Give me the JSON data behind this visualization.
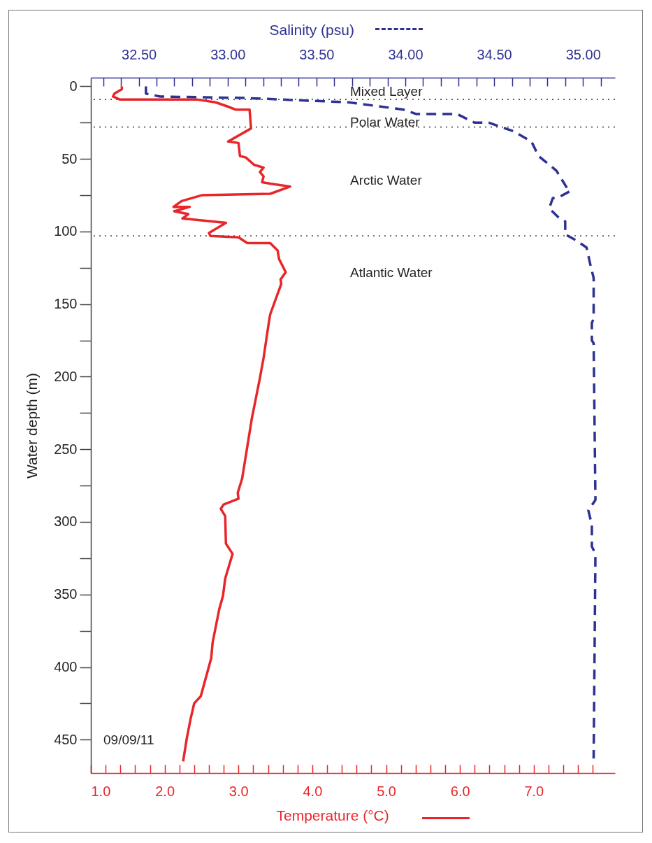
{
  "chart_data": {
    "type": "line",
    "xlabel": "Temperature (°C)",
    "x2label": "Salinity (psu)",
    "ylabel": "Water depth (m)",
    "xlim": [
      1.0,
      8.1
    ],
    "xticks": [
      {
        "value": 1,
        "label": "1.0"
      },
      {
        "value": 1.2,
        "label": null
      },
      {
        "value": 1.4,
        "label": null
      },
      {
        "value": 1.6,
        "label": null
      },
      {
        "value": 1.8,
        "label": null
      },
      {
        "value": 2,
        "label": "2.0"
      },
      {
        "value": 2.2,
        "label": null
      },
      {
        "value": 2.4,
        "label": null
      },
      {
        "value": 2.6,
        "label": null
      },
      {
        "value": 2.8,
        "label": null
      },
      {
        "value": 3,
        "label": "3.0"
      },
      {
        "value": 3.2,
        "label": null
      },
      {
        "value": 3.4,
        "label": null
      },
      {
        "value": 3.6,
        "label": null
      },
      {
        "value": 3.8,
        "label": null
      },
      {
        "value": 4,
        "label": "4.0"
      },
      {
        "value": 4.2,
        "label": null
      },
      {
        "value": 4.4,
        "label": null
      },
      {
        "value": 4.6,
        "label": null
      },
      {
        "value": 4.8,
        "label": null
      },
      {
        "value": 5,
        "label": "5.0"
      },
      {
        "value": 5.2,
        "label": null
      },
      {
        "value": 5.4,
        "label": null
      },
      {
        "value": 5.6,
        "label": null
      },
      {
        "value": 5.8,
        "label": null
      },
      {
        "value": 6,
        "label": "6.0"
      },
      {
        "value": 6.2,
        "label": null
      },
      {
        "value": 6.4,
        "label": null
      },
      {
        "value": 6.6,
        "label": null
      },
      {
        "value": 6.8,
        "label": null
      },
      {
        "value": 7,
        "label": "7.0"
      },
      {
        "value": 7.2,
        "label": null
      },
      {
        "value": 7.4,
        "label": null
      },
      {
        "value": 7.6,
        "label": null
      },
      {
        "value": 7.8,
        "label": null
      }
    ],
    "x2lim": [
      32.23,
      35.18
    ],
    "x2ticks": [
      {
        "value": 32.3,
        "label": null
      },
      {
        "value": 32.4,
        "label": null
      },
      {
        "value": 32.5,
        "label": "32.50"
      },
      {
        "value": 32.6,
        "label": null
      },
      {
        "value": 32.7,
        "label": null
      },
      {
        "value": 32.8,
        "label": null
      },
      {
        "value": 32.9,
        "label": null
      },
      {
        "value": 33,
        "label": "33.00"
      },
      {
        "value": 33.1,
        "label": null
      },
      {
        "value": 33.2,
        "label": null
      },
      {
        "value": 33.3,
        "label": null
      },
      {
        "value": 33.4,
        "label": null
      },
      {
        "value": 33.5,
        "label": "33.50"
      },
      {
        "value": 33.6,
        "label": null
      },
      {
        "value": 33.7,
        "label": null
      },
      {
        "value": 33.8,
        "label": null
      },
      {
        "value": 33.9,
        "label": null
      },
      {
        "value": 34,
        "label": "34.00"
      },
      {
        "value": 34.1,
        "label": null
      },
      {
        "value": 34.2,
        "label": null
      },
      {
        "value": 34.3,
        "label": null
      },
      {
        "value": 34.4,
        "label": null
      },
      {
        "value": 34.5,
        "label": "34.50"
      },
      {
        "value": 34.6,
        "label": null
      },
      {
        "value": 34.7,
        "label": null
      },
      {
        "value": 34.8,
        "label": null
      },
      {
        "value": 34.9,
        "label": null
      },
      {
        "value": 35,
        "label": "35.00"
      },
      {
        "value": 35.1,
        "label": null
      }
    ],
    "ylim": [
      473,
      -6
    ],
    "yticks": [
      0,
      {
        "value": 25,
        "label": null
      },
      50,
      {
        "value": 75,
        "label": null
      },
      100,
      {
        "value": 125,
        "label": null
      },
      150,
      {
        "value": 175,
        "label": null
      },
      200,
      {
        "value": 225,
        "label": null
      },
      250,
      {
        "value": 275,
        "label": null
      },
      300,
      {
        "value": 325,
        "label": null
      },
      350,
      {
        "value": 375,
        "label": null
      },
      400,
      {
        "value": 425,
        "label": null
      },
      450
    ],
    "series": [
      {
        "color": "#e8262a",
        "x": [
          1.42,
          1.42,
          1.32,
          1.3,
          1.39,
          2.43,
          2.69,
          2.86,
          2.96,
          3.15,
          3.17,
          2.86,
          3.0,
          3.02,
          3.1,
          3.21,
          3.34,
          3.29,
          3.34,
          3.32,
          3.43,
          3.7,
          3.43,
          2.5,
          2.23,
          2.12,
          2.34,
          2.13,
          2.32,
          2.24,
          2.83,
          2.6,
          2.62,
          3.0,
          3.12,
          3.43,
          3.53,
          3.55,
          3.64,
          3.57,
          3.58,
          3.43,
          3.41,
          3.34,
          3.29,
          3.18,
          3.05,
          2.99,
          3.0,
          2.8,
          2.76,
          2.82,
          2.83,
          2.92,
          2.82,
          2.79,
          2.74,
          2.65,
          2.63,
          2.49,
          2.4,
          2.35,
          2.3,
          2.25
        ],
        "values": [
          0,
          2,
          5,
          7,
          9,
          9,
          11,
          14,
          16,
          16,
          29,
          38,
          39,
          48,
          49,
          54,
          56,
          59,
          62,
          66,
          67,
          69,
          74,
          75,
          79,
          83,
          83,
          86,
          88,
          91,
          94,
          101,
          103,
          104,
          108,
          108,
          113,
          119,
          128,
          133,
          136,
          157,
          163,
          187,
          201,
          229,
          270,
          280,
          284,
          288,
          291,
          296,
          315,
          322,
          339,
          351,
          360,
          383,
          394,
          420,
          425,
          436,
          449,
          465
        ]
      },
      {
        "color": "#2e3192",
        "axis": "x2",
        "line_style": "dashed",
        "x": [
          32.54,
          32.54,
          32.62,
          33.1,
          33.68,
          33.99,
          34.06,
          34.29,
          34.39,
          34.47,
          34.61,
          34.71,
          34.75,
          34.85,
          34.91,
          34.93,
          34.87,
          34.83,
          34.81,
          34.86,
          34.9,
          34.9,
          34.96,
          35.02,
          35.04,
          35.06,
          35.06,
          35.05,
          35.05,
          35.06,
          35.07,
          35.03,
          35.05,
          35.05,
          35.07,
          35.06
        ],
        "values": [
          0,
          5,
          7,
          8,
          11,
          16,
          19,
          19,
          25,
          25,
          31,
          38,
          48,
          58,
          70,
          72,
          76,
          77,
          84,
          90,
          93,
          102,
          106,
          111,
          122,
          132,
          160,
          163,
          175,
          177,
          285,
          292,
          302,
          317,
          322,
          463
        ]
      }
    ],
    "ref_lines": [
      {
        "axis": "y",
        "value": 9,
        "color": "#555555",
        "line_style": "dotted"
      },
      {
        "axis": "y",
        "value": 28,
        "color": "#555555",
        "line_style": "dotted"
      },
      {
        "axis": "y",
        "value": 103,
        "color": "#555555",
        "line_style": "dotted"
      }
    ],
    "annotations": [
      "Mixed Layer",
      "Polar Water",
      "Arctic Water",
      "Atlantic Water",
      "09/09/11"
    ]
  }
}
